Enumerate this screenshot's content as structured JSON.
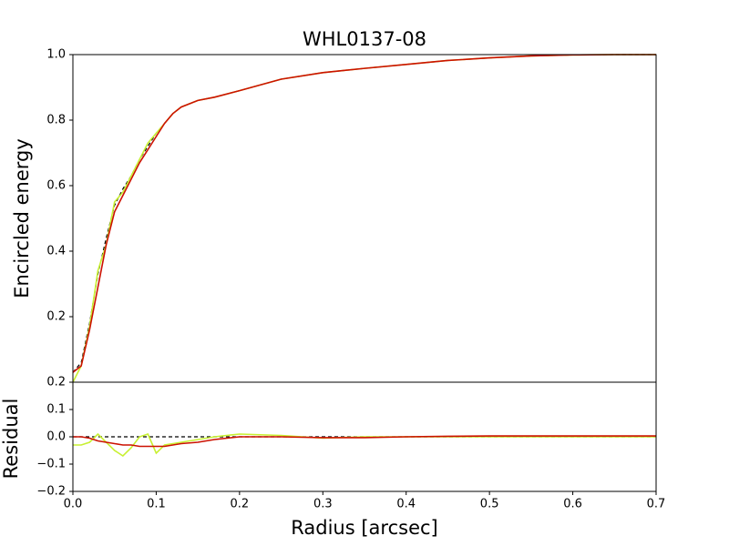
{
  "chart_data": [
    {
      "type": "line",
      "title": "WHL0137-08",
      "ylabel": "Encircled energy",
      "x": [
        0,
        0.01,
        0.02,
        0.03,
        0.04,
        0.05,
        0.06,
        0.07,
        0.08,
        0.09,
        0.1,
        0.11,
        0.12,
        0.13,
        0.15,
        0.17,
        0.2,
        0.25,
        0.3,
        0.35,
        0.4,
        0.45,
        0.5,
        0.55,
        0.6,
        0.65,
        0.7
      ],
      "series": [
        {
          "color": "#000000",
          "linestyle": "dashed",
          "values": [
            0.03,
            0.06,
            0.18,
            0.33,
            0.44,
            0.54,
            0.59,
            0.63,
            0.68,
            0.72,
            0.76,
            0.79,
            0.82,
            0.84,
            0.86,
            0.87,
            0.89,
            0.925,
            0.945,
            0.958,
            0.97,
            0.982,
            0.99,
            0.996,
            0.999,
            1.0,
            1.0
          ]
        },
        {
          "color": "#c8f032",
          "values": [
            0.0,
            0.05,
            0.17,
            0.34,
            0.42,
            0.55,
            0.58,
            0.63,
            0.68,
            0.73,
            0.76,
            0.79,
            0.82,
            0.84,
            0.86,
            0.87,
            0.89,
            0.925,
            0.945,
            0.958,
            0.97,
            0.982,
            0.99,
            0.996,
            0.999,
            1.0,
            1.0
          ]
        },
        {
          "color": "#cc1100",
          "values": [
            0.03,
            0.05,
            0.16,
            0.29,
            0.42,
            0.52,
            0.57,
            0.62,
            0.67,
            0.71,
            0.75,
            0.79,
            0.82,
            0.84,
            0.86,
            0.87,
            0.89,
            0.925,
            0.945,
            0.958,
            0.97,
            0.982,
            0.99,
            0.996,
            0.999,
            1.0,
            1.0
          ]
        }
      ],
      "xlim": [
        0,
        0.7
      ],
      "ylim": [
        0,
        1
      ],
      "yticks": [
        0.2,
        0.4,
        0.6,
        0.8,
        {
          "value": 1,
          "label": "1.0"
        }
      ]
    },
    {
      "type": "line",
      "ylabel": "Residual",
      "xlabel": "Radius [arcsec]",
      "x": [
        0,
        0.01,
        0.02,
        0.03,
        0.04,
        0.05,
        0.06,
        0.07,
        0.08,
        0.09,
        0.1,
        0.11,
        0.12,
        0.13,
        0.15,
        0.17,
        0.2,
        0.25,
        0.3,
        0.35,
        0.4,
        0.45,
        0.5,
        0.55,
        0.6,
        0.65,
        0.7
      ],
      "series": [
        {
          "color": "#000000",
          "linestyle": "dashed",
          "values": [
            0,
            0,
            0,
            0,
            0,
            0,
            0,
            0,
            0,
            0,
            0,
            0,
            0,
            0,
            0,
            0,
            0,
            0,
            0,
            0,
            0,
            0,
            0,
            0,
            0,
            0,
            0
          ]
        },
        {
          "color": "#c8f032",
          "values": [
            -0.03,
            -0.03,
            -0.02,
            0.01,
            -0.02,
            -0.05,
            -0.07,
            -0.04,
            0.0,
            0.01,
            -0.06,
            -0.03,
            -0.025,
            -0.02,
            -0.01,
            0.0,
            0.01,
            0.005,
            -0.005,
            0.0,
            0.0,
            0.0,
            0.0,
            0.0,
            0.0,
            0.0,
            0.0
          ]
        },
        {
          "color": "#cc1100",
          "values": [
            0.0,
            0.0,
            -0.005,
            -0.015,
            -0.02,
            -0.025,
            -0.03,
            -0.03,
            -0.035,
            -0.035,
            -0.035,
            -0.035,
            -0.03,
            -0.025,
            -0.02,
            -0.01,
            0.0,
            0.0,
            -0.003,
            -0.003,
            0.0,
            0.002,
            0.003,
            0.003,
            0.003,
            0.003,
            0.003
          ]
        }
      ],
      "xlim": [
        0,
        0.7
      ],
      "ylim": [
        -0.2,
        0.2
      ],
      "xticks": [
        {
          "value": 0,
          "label": "0.0"
        },
        0.1,
        0.2,
        0.3,
        0.4,
        0.5,
        0.6,
        0.7
      ],
      "yticks": [
        {
          "value": -0.2,
          "label": "−0.2"
        },
        {
          "value": -0.1,
          "label": "−0.1"
        },
        {
          "value": 0,
          "label": "0.0"
        },
        0.1,
        0.2
      ]
    }
  ]
}
